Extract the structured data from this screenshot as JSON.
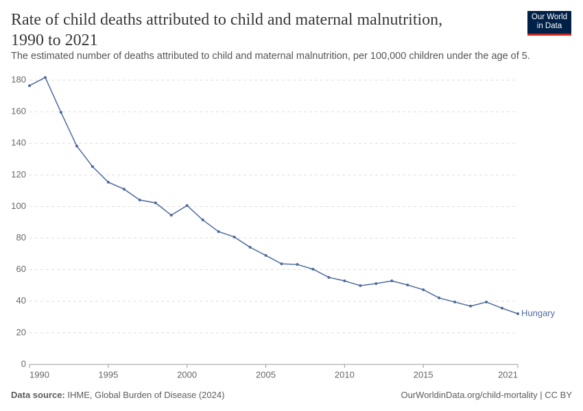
{
  "chart_data": {
    "type": "line",
    "title": "Rate of child deaths attributed to child and maternal malnutrition, 1990 to 2021",
    "subtitle": "The estimated number of deaths attributed to child and maternal malnutrition, per 100,000 children under the age of 5.",
    "logo": [
      "Our World",
      "in Data"
    ],
    "source_label": "Data source:",
    "source": "IHME, Global Burden of Disease (2024)",
    "credit": "OurWorldinData.org/child-mortality | CC BY",
    "x": [
      1990,
      1991,
      1992,
      1993,
      1994,
      1995,
      1996,
      1997,
      1998,
      1999,
      2000,
      2001,
      2002,
      2003,
      2004,
      2005,
      2006,
      2007,
      2008,
      2009,
      2010,
      2011,
      2012,
      2013,
      2014,
      2015,
      2016,
      2017,
      2018,
      2019,
      2020,
      2021
    ],
    "series": [
      {
        "name": "Hungary",
        "color": "#4c6a9c",
        "values": [
          176.5,
          181.7,
          159.6,
          138.3,
          125.3,
          115.4,
          111.0,
          104.1,
          102.3,
          94.5,
          100.6,
          91.5,
          84.1,
          80.7,
          74.2,
          69.0,
          63.7,
          63.3,
          60.3,
          55.1,
          52.9,
          49.9,
          51.2,
          52.9,
          50.3,
          47.3,
          42.1,
          39.5,
          36.9,
          39.5,
          35.6,
          32.1
        ]
      }
    ],
    "xlim": [
      1990,
      2021
    ],
    "xticks": [
      1990,
      1995,
      2000,
      2005,
      2010,
      2015,
      2021
    ],
    "ylim": [
      0,
      180
    ],
    "yticks": [
      0,
      20,
      40,
      60,
      80,
      100,
      120,
      140,
      160,
      180
    ],
    "grid": true
  }
}
